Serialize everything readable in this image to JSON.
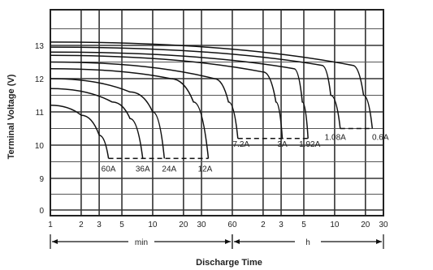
{
  "chart_data": {
    "type": "line",
    "title": "",
    "xlabel": "Discharge Time",
    "ylabel": "Terminal Voltage (V)",
    "ylim": [
      0,
      13.6
    ],
    "x_scale": "log",
    "y_scale": "broken (0-9 compressed, 9-13.6 linear)",
    "grid": true,
    "y_ticks": [
      "0",
      "9",
      "10",
      "11",
      "12",
      "13"
    ],
    "x_tick_labels": [
      {
        "label": "1",
        "minutes": 1
      },
      {
        "label": "2",
        "minutes": 2
      },
      {
        "label": "3",
        "minutes": 3
      },
      {
        "label": "5",
        "minutes": 5
      },
      {
        "label": "10",
        "minutes": 10
      },
      {
        "label": "20",
        "minutes": 20
      },
      {
        "label": "30",
        "minutes": 30
      },
      {
        "label": "60",
        "minutes": 60
      },
      {
        "label": "2",
        "minutes": 120
      },
      {
        "label": "3",
        "minutes": 180
      },
      {
        "label": "5",
        "minutes": 300
      },
      {
        "label": "10",
        "minutes": 600
      },
      {
        "label": "20",
        "minutes": 1200
      },
      {
        "label": "30",
        "minutes": 1800
      }
    ],
    "time_units": [
      {
        "label": "min",
        "from_minutes": 1,
        "to_minutes": 60
      },
      {
        "label": "h",
        "from_minutes": 60,
        "to_minutes": 1800
      }
    ],
    "cutoff_voltages": [
      9.6,
      9.6,
      9.6,
      9.6,
      10.2,
      10.2,
      10.2,
      10.5,
      10.5
    ],
    "series": [
      {
        "name": "60A",
        "points": [
          [
            1,
            11.2
          ],
          [
            2,
            10.9
          ],
          [
            3,
            10.3
          ],
          [
            3.7,
            9.6
          ]
        ]
      },
      {
        "name": "36A",
        "points": [
          [
            1,
            11.7
          ],
          [
            4,
            11.3
          ],
          [
            6,
            10.8
          ],
          [
            8,
            9.6
          ]
        ]
      },
      {
        "name": "24A",
        "points": [
          [
            1,
            12.0
          ],
          [
            6,
            11.6
          ],
          [
            10,
            11.0
          ],
          [
            13,
            9.6
          ]
        ]
      },
      {
        "name": "12A",
        "points": [
          [
            1,
            12.3
          ],
          [
            15,
            12.0
          ],
          [
            25,
            11.3
          ],
          [
            35,
            9.6
          ]
        ]
      },
      {
        "name": "7.2A",
        "points": [
          [
            1,
            12.5
          ],
          [
            40,
            12.0
          ],
          [
            55,
            11.3
          ],
          [
            68,
            10.2
          ]
        ]
      },
      {
        "name": "3A",
        "points": [
          [
            1,
            12.7
          ],
          [
            120,
            12.2
          ],
          [
            160,
            11.3
          ],
          [
            185,
            10.2
          ]
        ]
      },
      {
        "name": "1.92A",
        "points": [
          [
            1,
            12.8
          ],
          [
            240,
            12.3
          ],
          [
            290,
            11.3
          ],
          [
            330,
            10.2
          ]
        ]
      },
      {
        "name": "1.08A",
        "points": [
          [
            1,
            12.95
          ],
          [
            450,
            12.4
          ],
          [
            550,
            11.5
          ],
          [
            680,
            10.5
          ]
        ]
      },
      {
        "name": "0.6A",
        "points": [
          [
            1,
            13.1
          ],
          [
            900,
            12.4
          ],
          [
            1150,
            11.5
          ],
          [
            1400,
            10.5
          ]
        ]
      }
    ]
  }
}
